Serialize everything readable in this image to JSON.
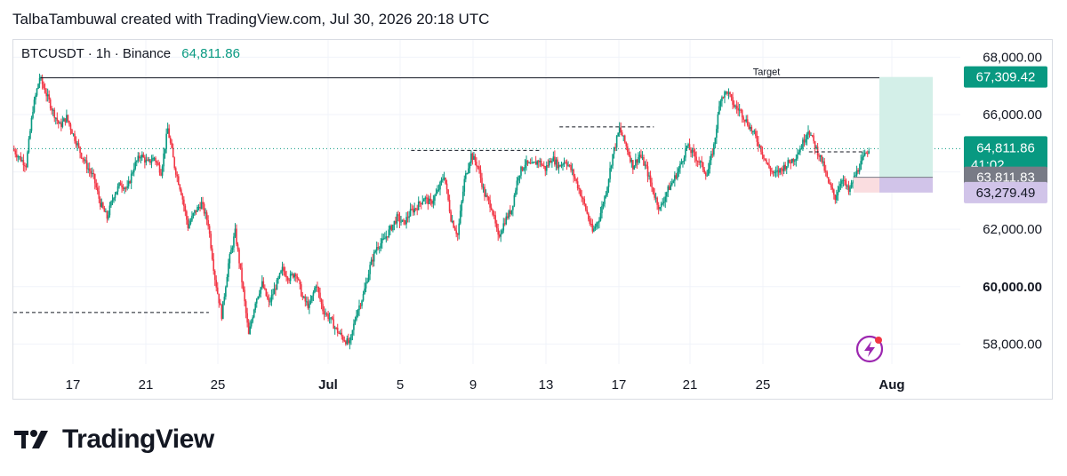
{
  "header": {
    "text": "TalbaTambuwal created with TradingView.com, Jul 30, 2026 20:18 UTC"
  },
  "legend": {
    "symbol": "BTCUSDT · 1h · Binance",
    "price": "64,811.86"
  },
  "brand": {
    "name": "TradingView",
    "logo_icon": "tradingview-logo-icon"
  },
  "colors": {
    "up": "#089981",
    "down": "#f23645",
    "target_zone": "#d3efe8",
    "stop_zone": "#fadde0",
    "purple_zone": "#d1c4e9",
    "price_tag": "#089981",
    "gray_tag": "#787b86",
    "purple_tag": "#d1c4e9",
    "accent_purple": "#9c27b0"
  },
  "chart_data": {
    "type": "candlestick",
    "symbol": "BTCUSDT",
    "interval": "1h",
    "exchange": "Binance",
    "ylim": [
      57300,
      68600
    ],
    "y_ticks": [
      "68,000.00",
      "66,000.00",
      "64,000.00",
      "62,000.00",
      "60,000.00",
      "58,000.00"
    ],
    "y_tick_values": [
      68000,
      66000,
      64000,
      62000,
      60000,
      58000
    ],
    "bold_y_tick": "60,000.00",
    "x_ticks": [
      "17",
      "21",
      "25",
      "Jul",
      "5",
      "9",
      "13",
      "17",
      "21",
      "25",
      "Aug"
    ],
    "bold_x_ticks": [
      "Jul",
      "Aug"
    ],
    "price_path": [
      [
        0,
        64800
      ],
      [
        1,
        64500
      ],
      [
        2,
        64250
      ],
      [
        3,
        66200
      ],
      [
        4,
        67300
      ],
      [
        5,
        66700
      ],
      [
        6,
        66100
      ],
      [
        7,
        65600
      ],
      [
        8,
        65900
      ],
      [
        9,
        65300
      ],
      [
        10,
        64700
      ],
      [
        11,
        64200
      ],
      [
        12,
        63800
      ],
      [
        13,
        62900
      ],
      [
        14,
        62400
      ],
      [
        15,
        63200
      ],
      [
        16,
        63600
      ],
      [
        17,
        63400
      ],
      [
        18,
        64200
      ],
      [
        19,
        64600
      ],
      [
        20,
        64300
      ],
      [
        21,
        64500
      ],
      [
        22,
        64000
      ],
      [
        23,
        65500
      ],
      [
        24,
        64200
      ],
      [
        25,
        63300
      ],
      [
        26,
        62100
      ],
      [
        27,
        62600
      ],
      [
        28,
        62900
      ],
      [
        29,
        62200
      ],
      [
        30,
        60300
      ],
      [
        31,
        59000
      ],
      [
        32,
        60800
      ],
      [
        33,
        61900
      ],
      [
        34,
        60200
      ],
      [
        35,
        58300
      ],
      [
        36,
        59500
      ],
      [
        37,
        60100
      ],
      [
        38,
        59400
      ],
      [
        39,
        60000
      ],
      [
        40,
        60600
      ],
      [
        41,
        60300
      ],
      [
        42,
        60500
      ],
      [
        43,
        59600
      ],
      [
        44,
        59300
      ],
      [
        45,
        60100
      ],
      [
        46,
        59200
      ],
      [
        47,
        58900
      ],
      [
        48,
        58500
      ],
      [
        49,
        58200
      ],
      [
        50,
        58000
      ],
      [
        51,
        59100
      ],
      [
        52,
        59700
      ],
      [
        53,
        60700
      ],
      [
        54,
        61400
      ],
      [
        55,
        61600
      ],
      [
        56,
        62000
      ],
      [
        57,
        62400
      ],
      [
        58,
        62200
      ],
      [
        59,
        62600
      ],
      [
        60,
        62800
      ],
      [
        61,
        63100
      ],
      [
        62,
        62900
      ],
      [
        63,
        63300
      ],
      [
        64,
        63900
      ],
      [
        65,
        62400
      ],
      [
        66,
        61800
      ],
      [
        67,
        63700
      ],
      [
        68,
        64600
      ],
      [
        69,
        64200
      ],
      [
        70,
        63200
      ],
      [
        71,
        62800
      ],
      [
        72,
        61700
      ],
      [
        73,
        62300
      ],
      [
        74,
        62700
      ],
      [
        75,
        63900
      ],
      [
        76,
        64300
      ],
      [
        77,
        64200
      ],
      [
        78,
        64400
      ],
      [
        79,
        64100
      ],
      [
        80,
        64500
      ],
      [
        81,
        64200
      ],
      [
        82,
        64400
      ],
      [
        83,
        64000
      ],
      [
        84,
        63400
      ],
      [
        85,
        62700
      ],
      [
        86,
        61900
      ],
      [
        87,
        62400
      ],
      [
        88,
        63300
      ],
      [
        89,
        64600
      ],
      [
        90,
        65500
      ],
      [
        91,
        64900
      ],
      [
        92,
        64200
      ],
      [
        93,
        64600
      ],
      [
        94,
        64100
      ],
      [
        95,
        63300
      ],
      [
        96,
        62700
      ],
      [
        97,
        63300
      ],
      [
        98,
        63700
      ],
      [
        99,
        64200
      ],
      [
        100,
        64900
      ],
      [
        101,
        64600
      ],
      [
        102,
        64300
      ],
      [
        103,
        63900
      ],
      [
        104,
        64900
      ],
      [
        105,
        66600
      ],
      [
        106,
        66800
      ],
      [
        107,
        66300
      ],
      [
        108,
        66100
      ],
      [
        109,
        65700
      ],
      [
        110,
        65300
      ],
      [
        111,
        64800
      ],
      [
        112,
        64200
      ],
      [
        113,
        63900
      ],
      [
        114,
        64100
      ],
      [
        115,
        64300
      ],
      [
        116,
        64500
      ],
      [
        117,
        64900
      ],
      [
        118,
        65500
      ],
      [
        119,
        64900
      ],
      [
        120,
        64400
      ],
      [
        121,
        63600
      ],
      [
        122,
        63100
      ],
      [
        123,
        63800
      ],
      [
        124,
        63300
      ],
      [
        125,
        63900
      ],
      [
        126,
        64400
      ],
      [
        127,
        64811.86
      ]
    ],
    "price_path_x_range": [
      0,
      127
    ],
    "drawings": {
      "target_label": "Target",
      "target_line_price": 67309.42,
      "dashed_levels": [
        {
          "price": 59100,
          "from": 0,
          "to": 29
        },
        {
          "price": 64750,
          "from": 59,
          "to": 78
        },
        {
          "price": 65570,
          "from": 81,
          "to": 95
        },
        {
          "price": 64700,
          "from": 118,
          "to": 126
        }
      ],
      "position": {
        "entry": 63811.83,
        "stop": 63279.49,
        "target": 67309.42
      }
    },
    "price_labels": [
      {
        "price": 67309.42,
        "text": "67,309.42",
        "style": "green"
      },
      {
        "price": 64811.86,
        "text": "64,811.86",
        "sub": "41:02",
        "style": "green"
      },
      {
        "price": 63811.83,
        "text": "63,811.83",
        "style": "gray"
      },
      {
        "price": 63279.49,
        "text": "63,279.49",
        "style": "purple"
      }
    ],
    "current_price": 64811.86,
    "countdown": "41:02"
  }
}
